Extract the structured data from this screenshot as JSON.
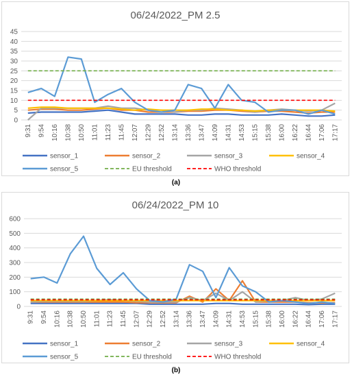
{
  "captions": {
    "a": "(a)",
    "b": "(b)"
  },
  "chart_data": [
    {
      "type": "line",
      "title": "06/24/2022_PM 2.5",
      "ylim": [
        0,
        45
      ],
      "yticks": [
        0,
        5,
        10,
        15,
        20,
        25,
        30,
        35,
        40,
        45
      ],
      "grid": true,
      "legend_position": "bottom",
      "categories": [
        "9:31",
        "9:54",
        "10:16",
        "10:38",
        "10:50",
        "11:01",
        "11:23",
        "11:45",
        "12:07",
        "12:29",
        "12:52",
        "13:14",
        "13:36",
        "13:47",
        "14:09",
        "14:31",
        "14:53",
        "15:15",
        "15:38",
        "16:00",
        "16:22",
        "16:44",
        "17:06",
        "17:17"
      ],
      "series": [
        {
          "name": "sensor_1",
          "color": "#4472c4",
          "style": "solid",
          "values": [
            3.5,
            4,
            4,
            4,
            4,
            4.5,
            5,
            4,
            3,
            3,
            3,
            3,
            2.5,
            2.5,
            3,
            3,
            2.5,
            2.5,
            2.5,
            3,
            2.5,
            2,
            2,
            2.5
          ]
        },
        {
          "name": "sensor_2",
          "color": "#ed7d31",
          "style": "solid",
          "values": [
            5,
            5.5,
            5.5,
            5,
            5,
            5.5,
            6,
            5,
            5,
            4,
            4,
            4,
            4.5,
            4.5,
            5,
            5,
            4.5,
            4,
            4.5,
            4.5,
            4,
            3.5,
            4,
            4
          ]
        },
        {
          "name": "sensor_3",
          "color": "#a5a5a5",
          "style": "solid",
          "values": [
            0,
            6,
            6,
            6,
            6,
            6,
            7,
            6,
            6,
            5,
            5,
            4,
            5,
            5,
            6,
            5.5,
            5,
            4,
            5,
            5.5,
            5,
            4.5,
            5,
            8.5
          ]
        },
        {
          "name": "sensor_4",
          "color": "#ffc000",
          "style": "solid",
          "values": [
            6,
            6.5,
            6.5,
            6,
            6,
            6,
            6,
            5.5,
            5,
            5.5,
            5,
            5,
            5,
            5.5,
            5.5,
            5,
            5,
            4.5,
            5,
            5,
            5,
            5,
            5,
            4.5
          ]
        },
        {
          "name": "sensor_5",
          "color": "#5b9bd5",
          "style": "solid",
          "values": [
            14,
            16,
            12,
            32,
            31,
            9,
            13,
            16,
            9,
            5,
            4,
            5,
            18,
            16,
            6,
            18,
            10,
            9,
            4,
            5,
            5,
            3,
            5,
            3
          ]
        },
        {
          "name": "EU threshold",
          "color": "#70ad47",
          "style": "dashed",
          "values": [
            25,
            25,
            25,
            25,
            25,
            25,
            25,
            25,
            25,
            25,
            25,
            25,
            25,
            25,
            25,
            25,
            25,
            25,
            25,
            25,
            25,
            25,
            25,
            25
          ]
        },
        {
          "name": "WHO threshold",
          "color": "#ff0000",
          "style": "dashed",
          "values": [
            10,
            10,
            10,
            10,
            10,
            10,
            10,
            10,
            10,
            10,
            10,
            10,
            10,
            10,
            10,
            10,
            10,
            10,
            10,
            10,
            10,
            10,
            10,
            10
          ]
        }
      ]
    },
    {
      "type": "line",
      "title": "06/24/2022_PM 10",
      "ylim": [
        0,
        600
      ],
      "yticks": [
        0,
        100,
        200,
        300,
        400,
        500,
        600
      ],
      "grid": true,
      "legend_position": "bottom",
      "categories": [
        "9:31",
        "9:54",
        "10:16",
        "10:38",
        "10:50",
        "11:01",
        "11:23",
        "11:45",
        "12:07",
        "12:29",
        "12:52",
        "13:14",
        "13:36",
        "13:47",
        "14:09",
        "14:31",
        "14:53",
        "15:15",
        "15:38",
        "16:00",
        "16:22",
        "16:44",
        "17:06",
        "17:17"
      ],
      "series": [
        {
          "name": "sensor_1",
          "color": "#4472c4",
          "style": "solid",
          "values": [
            20,
            20,
            20,
            20,
            20,
            20,
            20,
            20,
            20,
            15,
            15,
            15,
            15,
            15,
            20,
            20,
            15,
            15,
            15,
            15,
            15,
            12,
            15,
            15
          ]
        },
        {
          "name": "sensor_2",
          "color": "#ed7d31",
          "style": "solid",
          "values": [
            30,
            30,
            30,
            30,
            30,
            30,
            30,
            30,
            25,
            25,
            25,
            25,
            70,
            30,
            120,
            40,
            175,
            30,
            30,
            30,
            30,
            25,
            25,
            25
          ]
        },
        {
          "name": "sensor_3",
          "color": "#a5a5a5",
          "style": "solid",
          "values": [
            30,
            35,
            35,
            35,
            35,
            40,
            45,
            40,
            35,
            30,
            30,
            30,
            60,
            40,
            90,
            40,
            100,
            30,
            40,
            40,
            60,
            40,
            50,
            90
          ]
        },
        {
          "name": "sensor_4",
          "color": "#ffc000",
          "style": "solid",
          "values": [
            40,
            40,
            40,
            40,
            40,
            40,
            40,
            40,
            40,
            40,
            40,
            40,
            40,
            40,
            40,
            40,
            40,
            40,
            40,
            40,
            40,
            40,
            40,
            40
          ]
        },
        {
          "name": "sensor_5",
          "color": "#5b9bd5",
          "style": "solid",
          "values": [
            190,
            200,
            160,
            360,
            480,
            260,
            150,
            230,
            120,
            40,
            30,
            50,
            285,
            240,
            60,
            265,
            140,
            100,
            30,
            40,
            30,
            20,
            30,
            20
          ]
        },
        {
          "name": "EU threshold",
          "color": "#70ad47",
          "style": "dashed",
          "values": [
            50,
            50,
            50,
            50,
            50,
            50,
            50,
            50,
            50,
            50,
            50,
            50,
            50,
            50,
            50,
            50,
            50,
            50,
            50,
            50,
            50,
            50,
            50,
            50
          ]
        },
        {
          "name": "WHO threshold",
          "color": "#ff0000",
          "style": "dashed",
          "values": [
            45,
            45,
            45,
            45,
            45,
            45,
            45,
            45,
            45,
            45,
            45,
            45,
            45,
            45,
            45,
            45,
            45,
            45,
            45,
            45,
            45,
            45,
            45,
            45
          ]
        }
      ]
    }
  ]
}
